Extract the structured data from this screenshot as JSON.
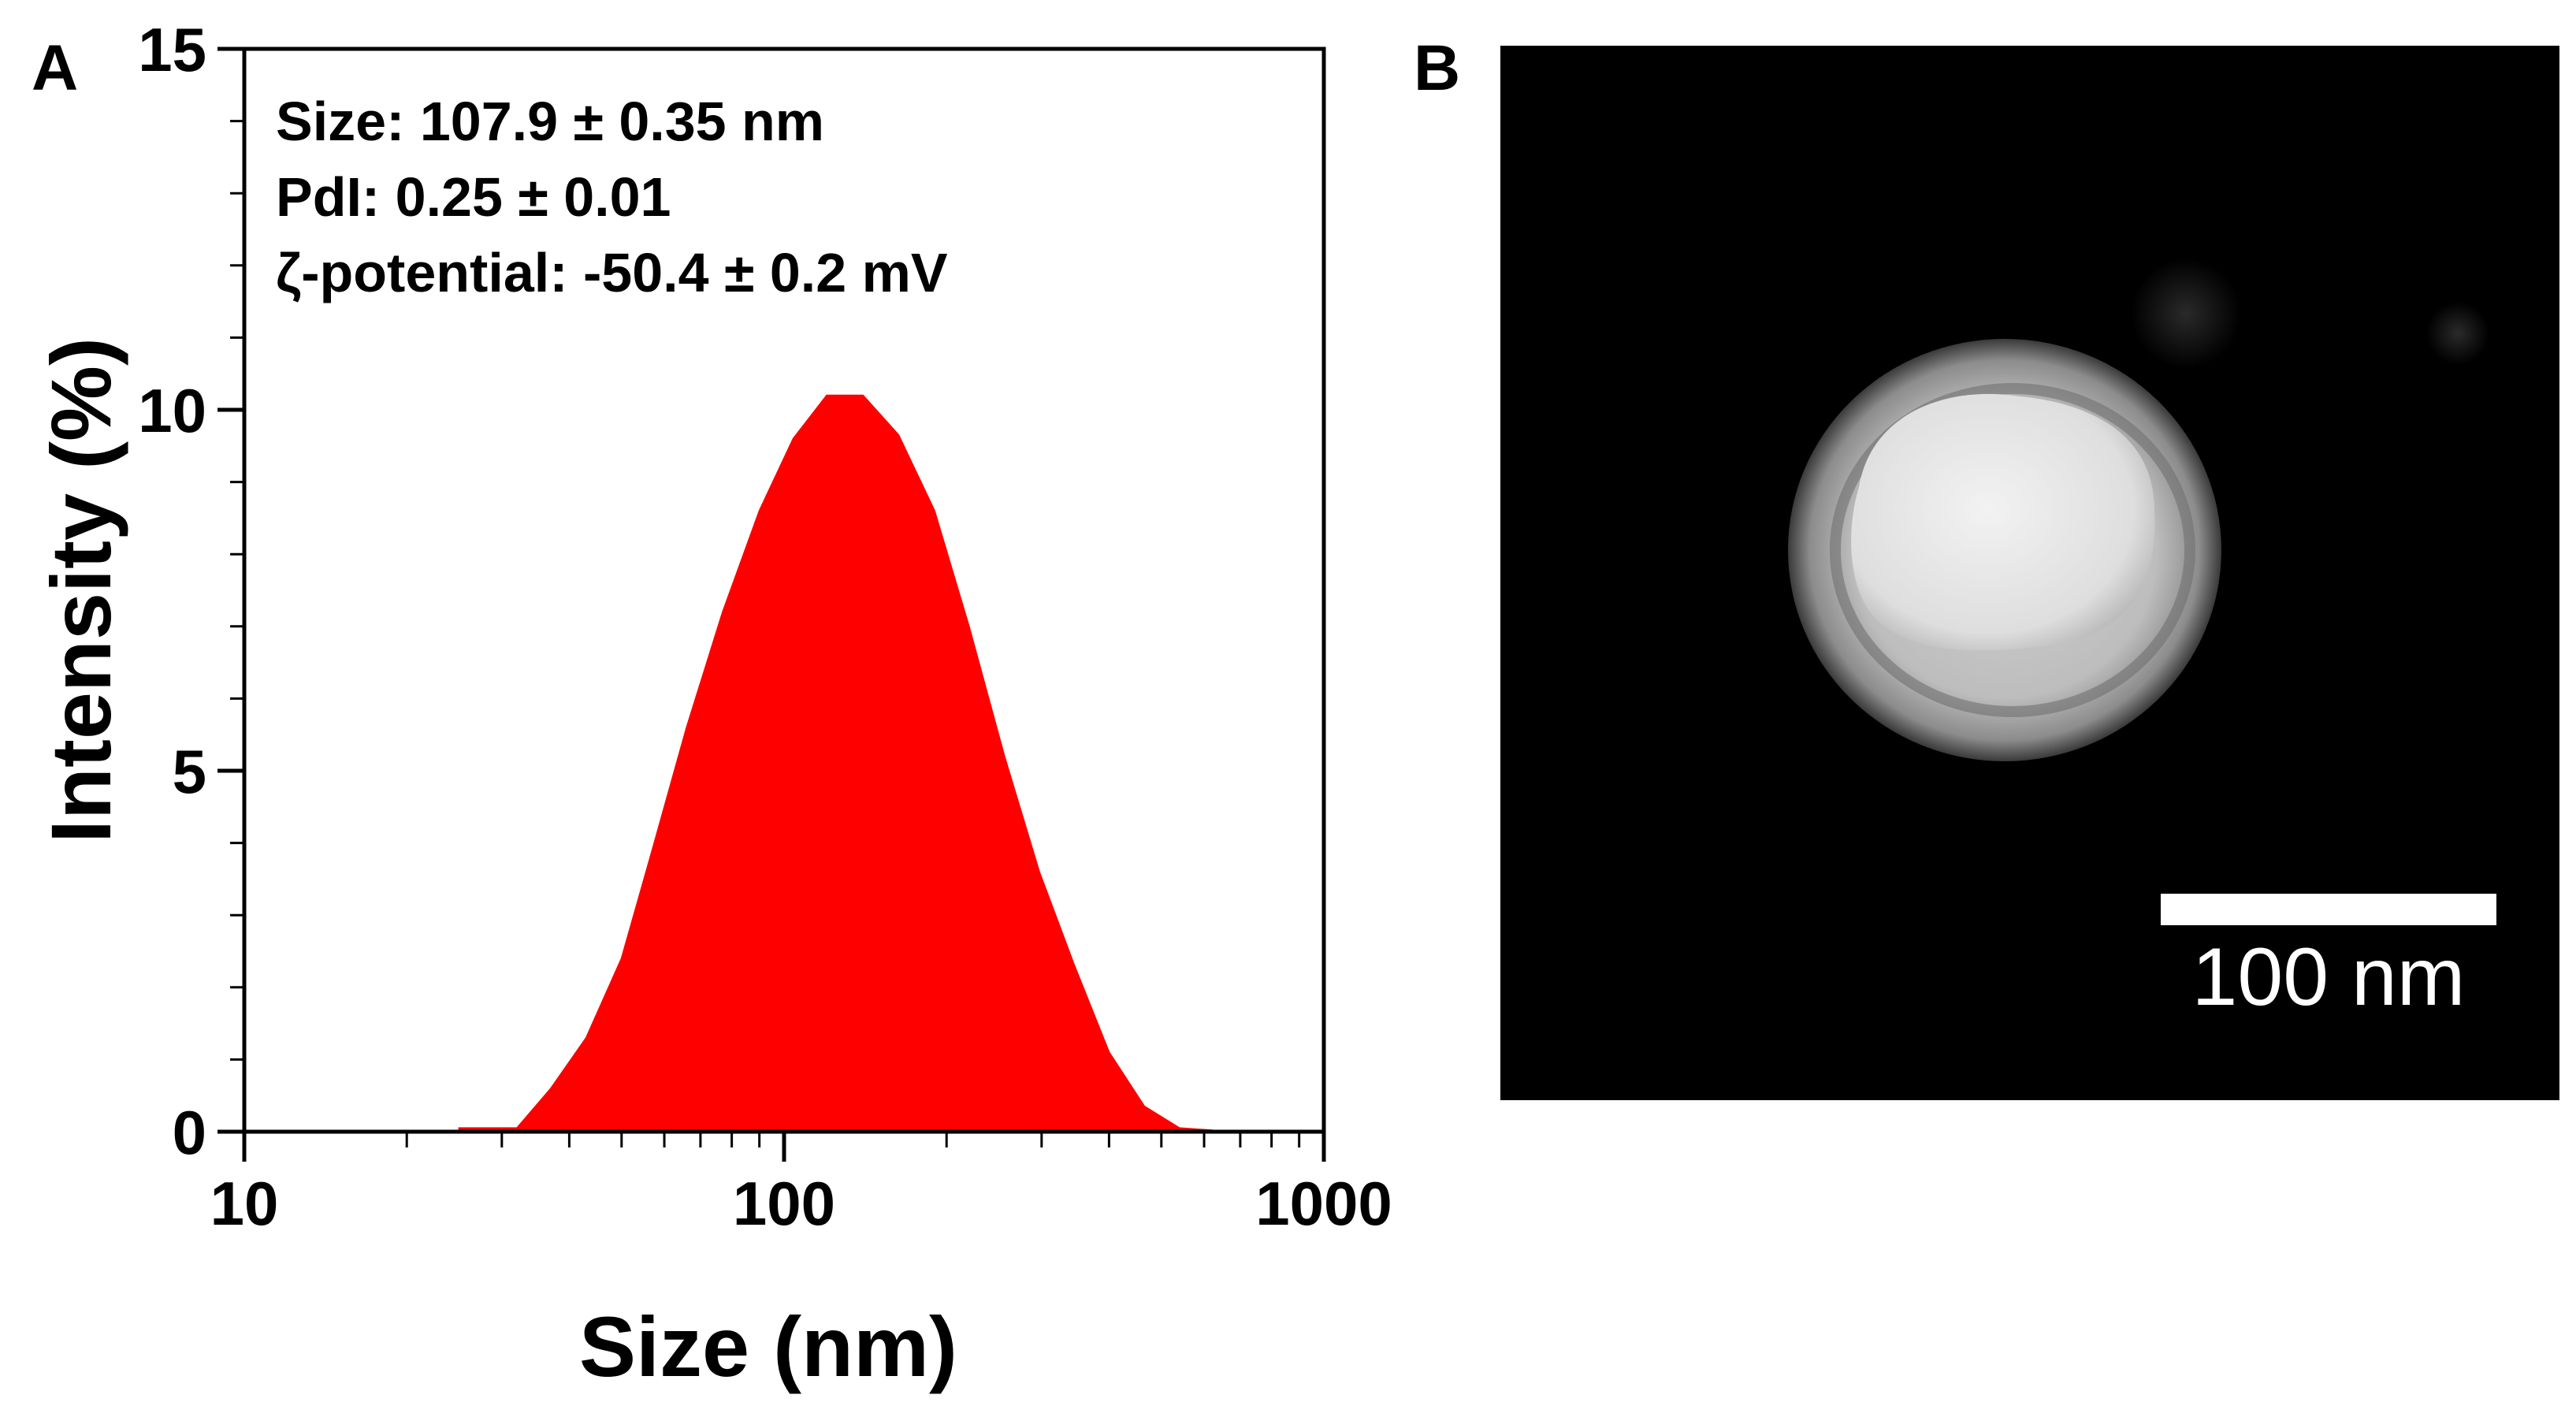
{
  "panels": {
    "a_label": "A",
    "b_label": "B"
  },
  "chart_data": {
    "type": "area",
    "xlabel": "Size  (nm)",
    "ylabel": "Intensity  (%)",
    "x_scale": "log",
    "xlim": [
      10,
      1000
    ],
    "ylim": [
      0,
      15
    ],
    "x_ticks": [
      10,
      100,
      1000
    ],
    "x_tick_labels": [
      "10",
      "100",
      "1000"
    ],
    "y_ticks": [
      0,
      5,
      10,
      15
    ],
    "y_tick_labels": [
      "0",
      "5",
      "10",
      "15"
    ],
    "grid": false,
    "fill_color": "#ff0000",
    "annotations": [
      "Size: 107.9 ± 0.35 nm",
      "PdI: 0.25 ± 0.01",
      "ζ-potential:  -50.4 ± 0.2 mV"
    ],
    "series": [
      {
        "x": [
          25,
          32,
          37,
          43,
          50,
          57,
          66,
          77,
          90,
          104,
          120,
          140,
          163,
          190,
          220,
          256,
          297,
          345,
          400,
          465,
          540,
          620
        ],
        "y": [
          0.05,
          0.05,
          0.6,
          1.3,
          2.4,
          3.9,
          5.6,
          7.2,
          8.6,
          9.6,
          10.2,
          10.2,
          9.65,
          8.6,
          7.0,
          5.2,
          3.6,
          2.3,
          1.1,
          0.35,
          0.05,
          0.02
        ]
      }
    ]
  },
  "tem_image": {
    "scale_bar_label": "100 nm",
    "background_color": "#000000",
    "particle_color": "#e6e6e6"
  }
}
